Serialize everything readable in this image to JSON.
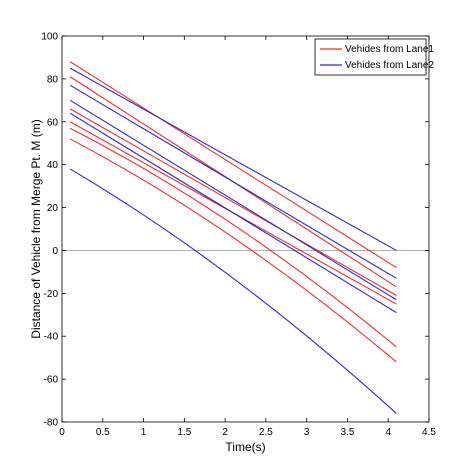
{
  "chart_data": {
    "type": "line",
    "xlabel": "Time(s)",
    "ylabel": "Distance of Vehicle from Merge Pt. M (m)",
    "xlim": [
      0,
      4.5
    ],
    "ylim": [
      -80,
      100
    ],
    "xticks": [
      0,
      0.5,
      1,
      1.5,
      2,
      2.5,
      3,
      3.5,
      4,
      4.5
    ],
    "yticks": [
      -80,
      -60,
      -40,
      -20,
      0,
      20,
      40,
      60,
      80,
      100
    ],
    "xtick_labels": [
      "0",
      "0.5",
      "1",
      "1.5",
      "2",
      "2.5",
      "3",
      "3.5",
      "4",
      "4.5"
    ],
    "ytick_labels": [
      "-80",
      "-60",
      "-40",
      "-20",
      "0",
      "20",
      "40",
      "60",
      "80",
      "100"
    ],
    "grid": false,
    "reference_line": {
      "y": 0,
      "color": "#b0b0b0"
    },
    "legend": {
      "position": "top-right",
      "entries": [
        {
          "label": "Vehides from Lane1",
          "color": "#e8332f"
        },
        {
          "label": "Vehides from Lane2",
          "color": "#2b2bc4"
        }
      ]
    },
    "series": [
      {
        "lane": 1,
        "color": "#e8332f",
        "x": [
          0.1,
          4.1
        ],
        "y": [
          88,
          -8
        ]
      },
      {
        "lane": 1,
        "color": "#e8332f",
        "x": [
          0.1,
          4.1
        ],
        "y": [
          81,
          -17
        ]
      },
      {
        "lane": 1,
        "color": "#e8332f",
        "x": [
          0.1,
          4.1
        ],
        "y": [
          66,
          -21
        ]
      },
      {
        "lane": 1,
        "color": "#e8332f",
        "x": [
          0.1,
          4.1
        ],
        "y": [
          60,
          -25
        ]
      },
      {
        "lane": 1,
        "color": "#e8332f",
        "x": [
          0.1,
          2.1,
          4.1
        ],
        "y": [
          57,
          12,
          -45
        ]
      },
      {
        "lane": 1,
        "color": "#e8332f",
        "x": [
          0.1,
          2.1,
          4.1
        ],
        "y": [
          52,
          6,
          -52
        ]
      },
      {
        "lane": 2,
        "color": "#2b2bc4",
        "x": [
          0.1,
          4.1
        ],
        "y": [
          85,
          0
        ]
      },
      {
        "lane": 2,
        "color": "#2b2bc4",
        "x": [
          0.1,
          4.1
        ],
        "y": [
          77,
          -13
        ]
      },
      {
        "lane": 2,
        "color": "#2b2bc4",
        "x": [
          0.1,
          4.1
        ],
        "y": [
          70,
          -23
        ]
      },
      {
        "lane": 2,
        "color": "#2b2bc4",
        "x": [
          0.1,
          4.1
        ],
        "y": [
          64,
          -29
        ]
      },
      {
        "lane": 2,
        "color": "#2b2bc4",
        "x": [
          0.1,
          2.1,
          4.1
        ],
        "y": [
          38,
          -13,
          -76
        ]
      }
    ]
  }
}
